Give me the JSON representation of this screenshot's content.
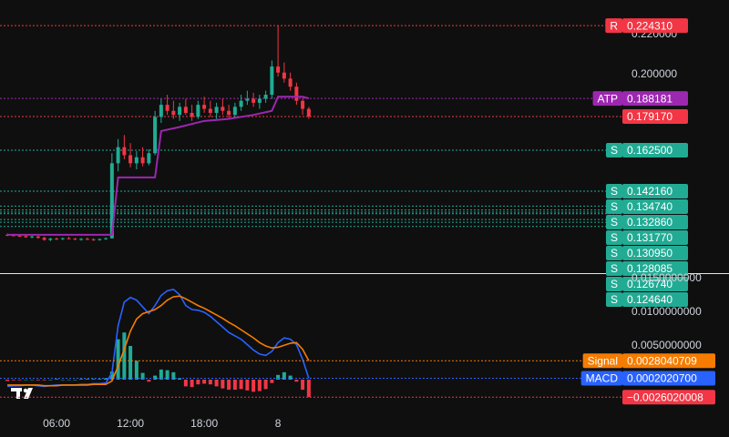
{
  "chart_data": [
    {
      "type": "candlestick",
      "x": [
        2,
        2.5,
        3,
        3.5,
        4,
        4.5,
        5,
        5.5,
        6,
        6.5,
        7,
        7.5,
        8,
        8.5,
        9,
        9.5,
        10,
        10.5,
        11,
        11.5,
        12,
        12.5,
        13,
        13.5,
        14,
        14.5,
        15,
        15.5,
        16,
        16.5,
        17,
        17.5,
        18,
        18.5,
        19,
        19.5,
        20,
        20.5,
        21,
        21.5,
        22,
        22.5,
        23,
        23.5,
        24,
        24.5,
        25,
        25.5,
        26,
        26.5
      ],
      "open": [
        0.1205,
        0.1203,
        0.12,
        0.1199,
        0.1193,
        0.1197,
        0.119,
        0.118,
        0.1186,
        0.1184,
        0.1188,
        0.1186,
        0.1182,
        0.1185,
        0.1183,
        0.118,
        0.1184,
        0.1188,
        0.156,
        0.164,
        0.16,
        0.156,
        0.159,
        0.156,
        0.161,
        0.179,
        0.185,
        0.182,
        0.18,
        0.184,
        0.181,
        0.179,
        0.185,
        0.183,
        0.181,
        0.184,
        0.182,
        0.18,
        0.184,
        0.187,
        0.188,
        0.186,
        0.188,
        0.19,
        0.204,
        0.201,
        0.198,
        0.194,
        0.187,
        0.183
      ],
      "high": [
        0.1212,
        0.121,
        0.1208,
        0.1206,
        0.1201,
        0.1203,
        0.1196,
        0.119,
        0.1192,
        0.1191,
        0.1195,
        0.119,
        0.1189,
        0.1191,
        0.1188,
        0.1187,
        0.1192,
        0.161,
        0.168,
        0.17,
        0.166,
        0.162,
        0.164,
        0.163,
        0.182,
        0.188,
        0.19,
        0.187,
        0.186,
        0.188,
        0.185,
        0.187,
        0.189,
        0.187,
        0.186,
        0.188,
        0.185,
        0.186,
        0.19,
        0.192,
        0.191,
        0.19,
        0.192,
        0.207,
        0.2243,
        0.206,
        0.201,
        0.196,
        0.188,
        0.184
      ],
      "low": [
        0.1198,
        0.1197,
        0.1195,
        0.119,
        0.1188,
        0.1186,
        0.1176,
        0.1174,
        0.118,
        0.1179,
        0.1182,
        0.1178,
        0.1176,
        0.1179,
        0.1175,
        0.1176,
        0.118,
        0.1186,
        0.152,
        0.158,
        0.154,
        0.153,
        0.1545,
        0.155,
        0.16,
        0.176,
        0.18,
        0.178,
        0.177,
        0.18,
        0.177,
        0.178,
        0.181,
        0.179,
        0.178,
        0.18,
        0.178,
        0.179,
        0.182,
        0.185,
        0.184,
        0.183,
        0.186,
        0.188,
        0.199,
        0.196,
        0.192,
        0.185,
        0.18,
        0.178
      ],
      "close": [
        0.1203,
        0.12,
        0.1199,
        0.1193,
        0.1197,
        0.119,
        0.118,
        0.1186,
        0.1184,
        0.1188,
        0.1186,
        0.1182,
        0.1185,
        0.1183,
        0.118,
        0.1184,
        0.1188,
        0.156,
        0.164,
        0.16,
        0.156,
        0.159,
        0.156,
        0.161,
        0.179,
        0.185,
        0.182,
        0.18,
        0.184,
        0.181,
        0.179,
        0.185,
        0.183,
        0.181,
        0.184,
        0.182,
        0.18,
        0.184,
        0.187,
        0.188,
        0.186,
        0.188,
        0.19,
        0.204,
        0.201,
        0.198,
        0.194,
        0.187,
        0.183,
        0.17917
      ],
      "up_color": "#22ab94",
      "down_color": "#f23645",
      "lines": [
        {
          "color": "#9c27b0",
          "x": [
            2,
            10.5,
            11,
            14,
            14.5,
            16,
            18,
            20,
            22,
            23.5,
            24,
            26,
            26.5
          ],
          "values": [
            0.1205,
            0.1205,
            0.149,
            0.149,
            0.172,
            0.174,
            0.177,
            0.178,
            0.18,
            0.182,
            0.189,
            0.189,
            0.188181
          ]
        }
      ],
      "levels": [
        {
          "name": "R",
          "value": 0.22431,
          "label": "0.224310",
          "color": "#f23645"
        },
        {
          "name": "ATP",
          "value": 0.188181,
          "label": "0.188181",
          "color": "#9c27b0"
        },
        {
          "value": 0.17917,
          "label": "0.179170",
          "color": "#f23645"
        },
        {
          "name": "S",
          "value": 0.1625,
          "label": "0.162500",
          "color": "#22ab94"
        },
        {
          "name": "S",
          "value": 0.14216,
          "label": "0.142160",
          "color": "#22ab94"
        },
        {
          "name": "S",
          "value": 0.13474,
          "label": "0.134740",
          "color": "#22ab94"
        },
        {
          "name": "S",
          "value": 0.13286,
          "label": "0.132860",
          "color": "#22ab94"
        },
        {
          "name": "S",
          "value": 0.13177,
          "label": "0.131770",
          "color": "#22ab94"
        },
        {
          "name": "S",
          "value": 0.13095,
          "label": "0.130950",
          "color": "#22ab94"
        },
        {
          "name": "S",
          "value": 0.128085,
          "label": "0.128085",
          "color": "#22ab94"
        },
        {
          "name": "S",
          "value": 0.12674,
          "label": "0.126740",
          "color": "#22ab94"
        },
        {
          "name": "S",
          "value": 0.12464,
          "label": "0.124640",
          "color": "#22ab94"
        }
      ],
      "xlim": [
        1.4,
        51.99
      ],
      "ylim": [
        0.1015,
        0.237
      ],
      "yticks": [
        {
          "value": 0.22,
          "label": "0.220000"
        },
        {
          "value": 0.2,
          "label": "0.200000"
        }
      ]
    },
    {
      "type": "macd",
      "x": [
        2,
        2.5,
        3,
        3.5,
        4,
        4.5,
        5,
        5.5,
        6,
        6.5,
        7,
        7.5,
        8,
        8.5,
        9,
        9.5,
        10,
        10.5,
        11,
        11.5,
        12,
        12.5,
        13,
        13.5,
        14,
        14.5,
        15,
        15.5,
        16,
        16.5,
        17,
        17.5,
        18,
        18.5,
        19,
        19.5,
        20,
        20.5,
        21,
        21.5,
        22,
        22.5,
        23,
        23.5,
        24,
        24.5,
        25,
        25.5,
        26,
        26.5
      ],
      "series": [
        {
          "name": "MACD",
          "color": "#2962ff",
          "last_label": "0.0002020700",
          "values": [
            -0.001,
            -0.0009,
            -0.0009,
            -0.0008,
            -0.0008,
            -0.0009,
            -0.001,
            -0.0009,
            -0.0008,
            -0.0008,
            -0.0008,
            -0.0008,
            -0.0007,
            -0.0007,
            -0.0006,
            -0.0006,
            -0.0005,
            0.001,
            0.008,
            0.0115,
            0.0122,
            0.0118,
            0.0108,
            0.0098,
            0.011,
            0.0125,
            0.0132,
            0.0134,
            0.0126,
            0.011,
            0.0104,
            0.0103,
            0.01,
            0.0094,
            0.0086,
            0.0078,
            0.007,
            0.0065,
            0.006,
            0.0052,
            0.0044,
            0.0038,
            0.0036,
            0.0042,
            0.0055,
            0.0062,
            0.006,
            0.0052,
            0.003,
            0.00020207
          ]
        },
        {
          "name": "Signal",
          "color": "#f57c00",
          "last_label": "0.0028040709",
          "values": [
            -0.0008,
            -0.0008,
            -0.0008,
            -0.0008,
            -0.0008,
            -0.0008,
            -0.0009,
            -0.0009,
            -0.0009,
            -0.0008,
            -0.0008,
            -0.0008,
            -0.0008,
            -0.0008,
            -0.0007,
            -0.0007,
            -0.0007,
            -0.0002,
            0.002,
            0.0045,
            0.0072,
            0.009,
            0.0098,
            0.0101,
            0.0104,
            0.011,
            0.0118,
            0.0123,
            0.0124,
            0.012,
            0.0115,
            0.011,
            0.0106,
            0.0101,
            0.0096,
            0.0091,
            0.0085,
            0.008,
            0.0074,
            0.0068,
            0.0062,
            0.0055,
            0.005,
            0.0047,
            0.0048,
            0.0051,
            0.0054,
            0.0055,
            0.0045,
            0.0028040709
          ]
        }
      ],
      "histogram": {
        "up_color": "#22ab94",
        "down_color": "#f23645",
        "last_label": "−0.0026020008",
        "values": [
          -0.0002,
          -0.0001,
          -0.0001,
          0,
          0,
          -0.0001,
          -0.0001,
          0,
          0.0001,
          0,
          0,
          0,
          0.0001,
          0.0001,
          0.0001,
          0.0001,
          0.0002,
          0.0012,
          0.006,
          0.007,
          0.005,
          0.0028,
          0.001,
          -0.0003,
          0.0006,
          0.0015,
          0.0014,
          0.0011,
          0.0002,
          -0.001,
          -0.0011,
          -0.0007,
          -0.0006,
          -0.0007,
          -0.001,
          -0.0013,
          -0.0015,
          -0.0015,
          -0.0014,
          -0.0016,
          -0.0018,
          -0.0017,
          -0.0014,
          -0.0005,
          0.0007,
          0.0011,
          0.0006,
          -0.0003,
          -0.0015,
          -0.0026020008
        ]
      },
      "xlim": [
        1.4,
        51.99
      ],
      "ylim": [
        -0.00554,
        0.01554
      ],
      "yticks": [
        {
          "value": 0.015,
          "label": "0.0150000000"
        },
        {
          "value": 0.01,
          "label": "0.0100000000"
        },
        {
          "value": 0.005,
          "label": "0.0050000000"
        }
      ],
      "xticks": [
        {
          "value": 6,
          "label": "06:00"
        },
        {
          "value": 12,
          "label": "12:00"
        },
        {
          "value": 18,
          "label": "18:00"
        },
        {
          "value": 24,
          "label": "8"
        }
      ]
    }
  ]
}
